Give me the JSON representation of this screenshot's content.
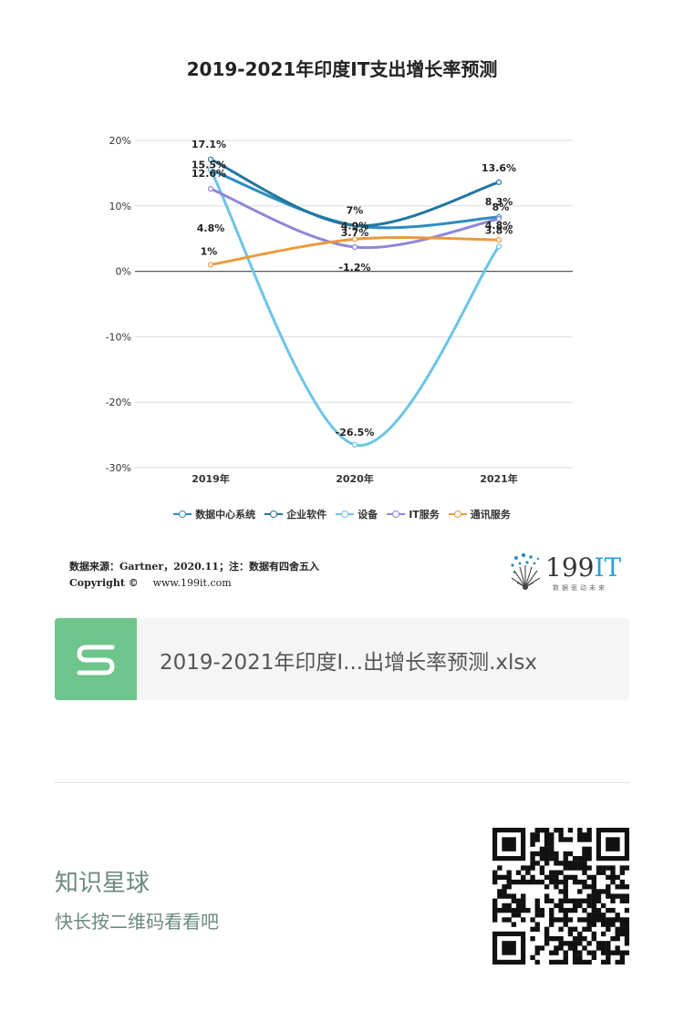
{
  "chart_data": {
    "type": "line",
    "title": "2019-2021年印度IT支出增长率预测",
    "categories": [
      "2019年",
      "2020年",
      "2021年"
    ],
    "ylim": [
      -30,
      20
    ],
    "y_ticks": [
      "20%",
      "10%",
      "0%",
      "-10%",
      "-20%",
      "-30%"
    ],
    "grid": true,
    "legend_position": "bottom",
    "series": [
      {
        "name": "数据中心系统",
        "values": [
          15.5,
          7,
          8.3
        ],
        "labels": [
          "15.5%",
          "7%",
          "8.3%"
        ],
        "color": "#2a8cc4"
      },
      {
        "name": "企业软件",
        "values": [
          17.1,
          7,
          13.6
        ],
        "labels": [
          "17.1%",
          "7%",
          "13.6%"
        ],
        "color": "#23769e"
      },
      {
        "name": "设备",
        "values": [
          15.5,
          -26.5,
          3.8
        ],
        "labels": [
          "",
          "-26.5%",
          "3.8%"
        ],
        "color": "#6cc4e6"
      },
      {
        "name": "IT服务",
        "values": [
          12.6,
          3.7,
          8
        ],
        "labels": [
          "12.6%",
          "3.7%",
          "8%"
        ],
        "color": "#8d86d9"
      },
      {
        "name": "通讯服务",
        "values": [
          1,
          4.9,
          4.8
        ],
        "labels": [
          "1%",
          "4.9%",
          "4.8%"
        ],
        "color": "#ec9a3b"
      }
    ],
    "extra_labels": {
      "2019": "4.8%",
      "2020": "-1.2%"
    }
  },
  "source": "数据来源：Gartner，2020.11；注：数据有四舍五入",
  "copyright": "Copyright ©",
  "website": "www.199it.com",
  "logo": {
    "text_199": "199",
    "text_it": "IT",
    "tagline": "数据驱动未来"
  },
  "file": {
    "name": "2019-2021年印度I...出增长率预测.xlsx",
    "icon_letter": "S",
    "icon_name": "spreadsheet-icon"
  },
  "footer": {
    "title": "知识星球",
    "subtitle": "快长按二维码看看吧"
  }
}
